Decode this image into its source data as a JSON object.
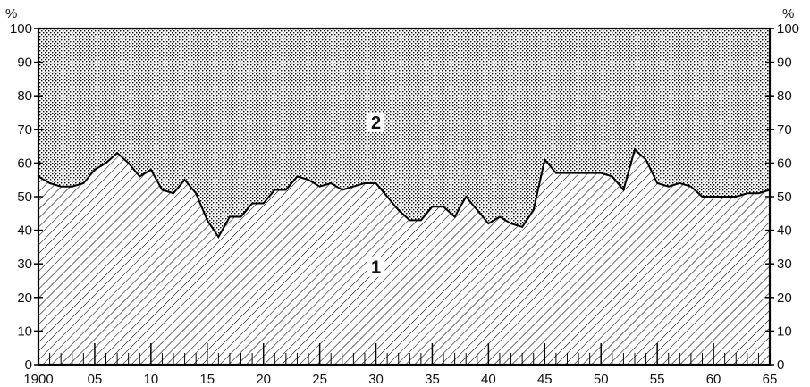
{
  "chart_data": {
    "type": "area",
    "title": "",
    "xlabel": "",
    "ylabel": "%",
    "ylabel_right": "%",
    "xlim": [
      1900,
      1965
    ],
    "ylim": [
      0,
      100
    ],
    "x_tick_labels": [
      {
        "x": 1900,
        "label": "1900"
      },
      {
        "x": 1905,
        "label": "05"
      },
      {
        "x": 1910,
        "label": "10"
      },
      {
        "x": 1915,
        "label": "15"
      },
      {
        "x": 1920,
        "label": "20"
      },
      {
        "x": 1925,
        "label": "25"
      },
      {
        "x": 1930,
        "label": "30"
      },
      {
        "x": 1935,
        "label": "35"
      },
      {
        "x": 1940,
        "label": "40"
      },
      {
        "x": 1945,
        "label": "45"
      },
      {
        "x": 1950,
        "label": "50"
      },
      {
        "x": 1955,
        "label": "55"
      },
      {
        "x": 1960,
        "label": "60"
      },
      {
        "x": 1965,
        "label": "65"
      }
    ],
    "y_ticks": [
      0,
      10,
      20,
      30,
      40,
      50,
      60,
      70,
      80,
      90,
      100
    ],
    "grid": false,
    "regions": [
      {
        "label": "1",
        "fill": "hatched",
        "anchor": {
          "x": 1930,
          "y": 28
        }
      },
      {
        "label": "2",
        "fill": "dotted",
        "anchor": {
          "x": 1930,
          "y": 71
        }
      }
    ],
    "boundary": {
      "x": [
        1900,
        1901,
        1902,
        1903,
        1904,
        1905,
        1906,
        1907,
        1908,
        1909,
        1910,
        1911,
        1912,
        1913,
        1914,
        1915,
        1916,
        1917,
        1918,
        1919,
        1920,
        1921,
        1922,
        1923,
        1924,
        1925,
        1926,
        1927,
        1928,
        1929,
        1930,
        1931,
        1932,
        1933,
        1934,
        1935,
        1936,
        1937,
        1938,
        1939,
        1940,
        1941,
        1942,
        1943,
        1944,
        1945,
        1946,
        1947,
        1948,
        1949,
        1950,
        1951,
        1952,
        1953,
        1954,
        1955,
        1956,
        1957,
        1958,
        1959,
        1960,
        1961,
        1962,
        1963,
        1964,
        1965
      ],
      "y": [
        56,
        54,
        53,
        53,
        54,
        58,
        60,
        63,
        60,
        56,
        58,
        52,
        51,
        55,
        51,
        43,
        38,
        44,
        44,
        48,
        48,
        52,
        52,
        56,
        55,
        53,
        54,
        52,
        53,
        54,
        54,
        50,
        46,
        43,
        43,
        47,
        47,
        44,
        50,
        46,
        42,
        44,
        42,
        41,
        46,
        61,
        57,
        57,
        57,
        57,
        57,
        56,
        52,
        64,
        61,
        54,
        53,
        54,
        53,
        50,
        50,
        50,
        50,
        51,
        51,
        52
      ]
    }
  }
}
